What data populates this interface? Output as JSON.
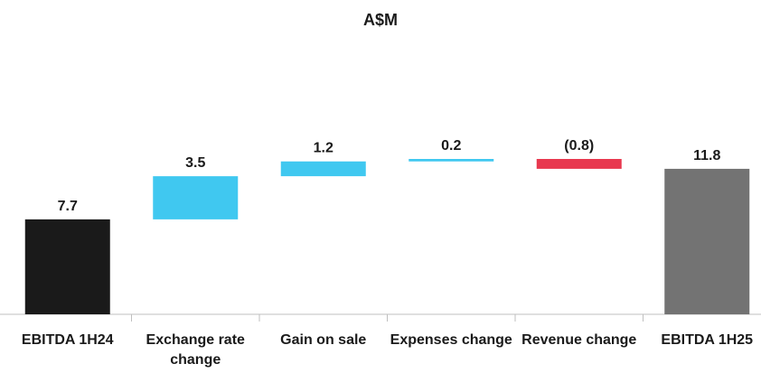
{
  "chart_data": {
    "type": "waterfall",
    "title": "A$M",
    "categories": [
      "EBITDA 1H24",
      "Exchange rate change",
      "Gain on sale",
      "Expenses change",
      "Revenue change",
      "EBITDA 1H25"
    ],
    "values": [
      7.7,
      3.5,
      1.2,
      0.2,
      -0.8,
      11.8
    ],
    "value_labels": [
      "7.7",
      "3.5",
      "1.2",
      "0.2",
      "(0.8)",
      "11.8"
    ],
    "colors": [
      "#1a1a1a",
      "#40c8f0",
      "#40c8f0",
      "#40c8f0",
      "#e8384f",
      "#737373"
    ]
  }
}
